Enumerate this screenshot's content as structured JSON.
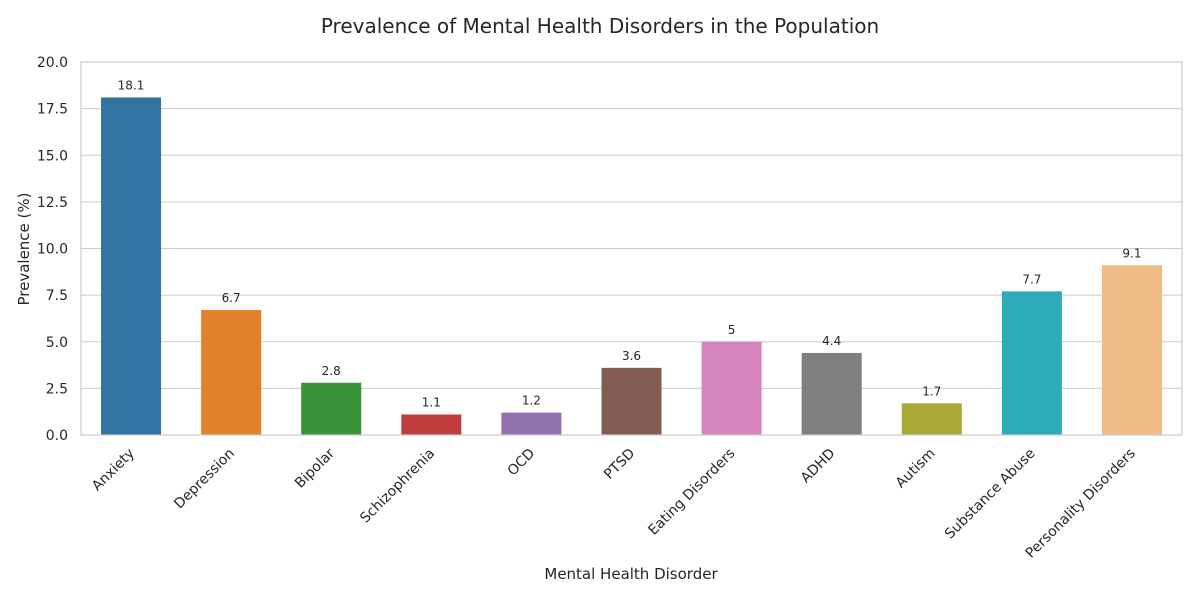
{
  "chart_data": {
    "type": "bar",
    "title": "Prevalence of Mental Health Disorders in the Population",
    "xlabel": "Mental Health Disorder",
    "ylabel": "Prevalence (%)",
    "ylim": [
      0,
      20
    ],
    "yticks": [
      "0.0",
      "2.5",
      "5.0",
      "7.5",
      "10.0",
      "12.5",
      "15.0",
      "17.5",
      "20.0"
    ],
    "grid": "horizontal",
    "categories": [
      "Anxiety",
      "Depression",
      "Bipolar",
      "Schizophrenia",
      "OCD",
      "PTSD",
      "Eating Disorders",
      "ADHD",
      "Autism",
      "Substance Abuse",
      "Personality Disorders"
    ],
    "values": [
      18.1,
      6.7,
      2.8,
      1.1,
      1.2,
      3.6,
      5,
      4.4,
      1.7,
      7.7,
      9.1
    ],
    "value_labels": [
      "18.1",
      "6.7",
      "2.8",
      "1.1",
      "1.2",
      "3.6",
      "5",
      "4.4",
      "1.7",
      "7.7",
      "9.1"
    ],
    "colors": [
      "#3274a1",
      "#e1812c",
      "#3a923a",
      "#c03d3e",
      "#9372b2",
      "#845b53",
      "#d684bd",
      "#7f7f7f",
      "#a9aa35",
      "#2eabb8",
      "#f0bb84"
    ],
    "axes_color": "#cccccc",
    "grid_color": "#cccccc"
  }
}
